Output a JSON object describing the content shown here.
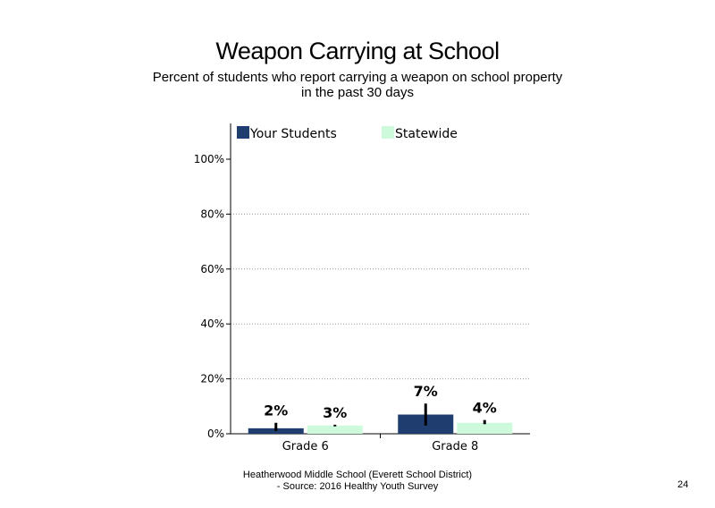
{
  "chart_data": {
    "type": "bar",
    "title": "Weapon Carrying at School",
    "subtitle_lines": [
      "Percent of students who report carrying a weapon on school property",
      "in the past 30 days"
    ],
    "categories": [
      "Grade 6",
      "Grade 8"
    ],
    "series": [
      {
        "name": "Your Students",
        "values": [
          2,
          7
        ],
        "error_low": [
          1,
          3
        ],
        "error_high": [
          4,
          11
        ],
        "color": "#1f3d6e"
      },
      {
        "name": "Statewide",
        "values": [
          3,
          4
        ],
        "error_low": [
          2.7,
          3.5
        ],
        "error_high": [
          3.3,
          5
        ],
        "color": "#ccfadb"
      }
    ],
    "data_labels": [
      [
        "2%",
        "7%"
      ],
      [
        "3%",
        "4%"
      ]
    ],
    "yticks": [
      "0%",
      "20%",
      "40%",
      "60%",
      "80%",
      "100%"
    ],
    "ylim": [
      0,
      100
    ],
    "grid": true,
    "legend_position": "top"
  },
  "footer": {
    "line1": "Heatherwood Middle School (Everett School District)",
    "line2": "- Source: 2016 Healthy Youth Survey"
  },
  "page_number": "24"
}
